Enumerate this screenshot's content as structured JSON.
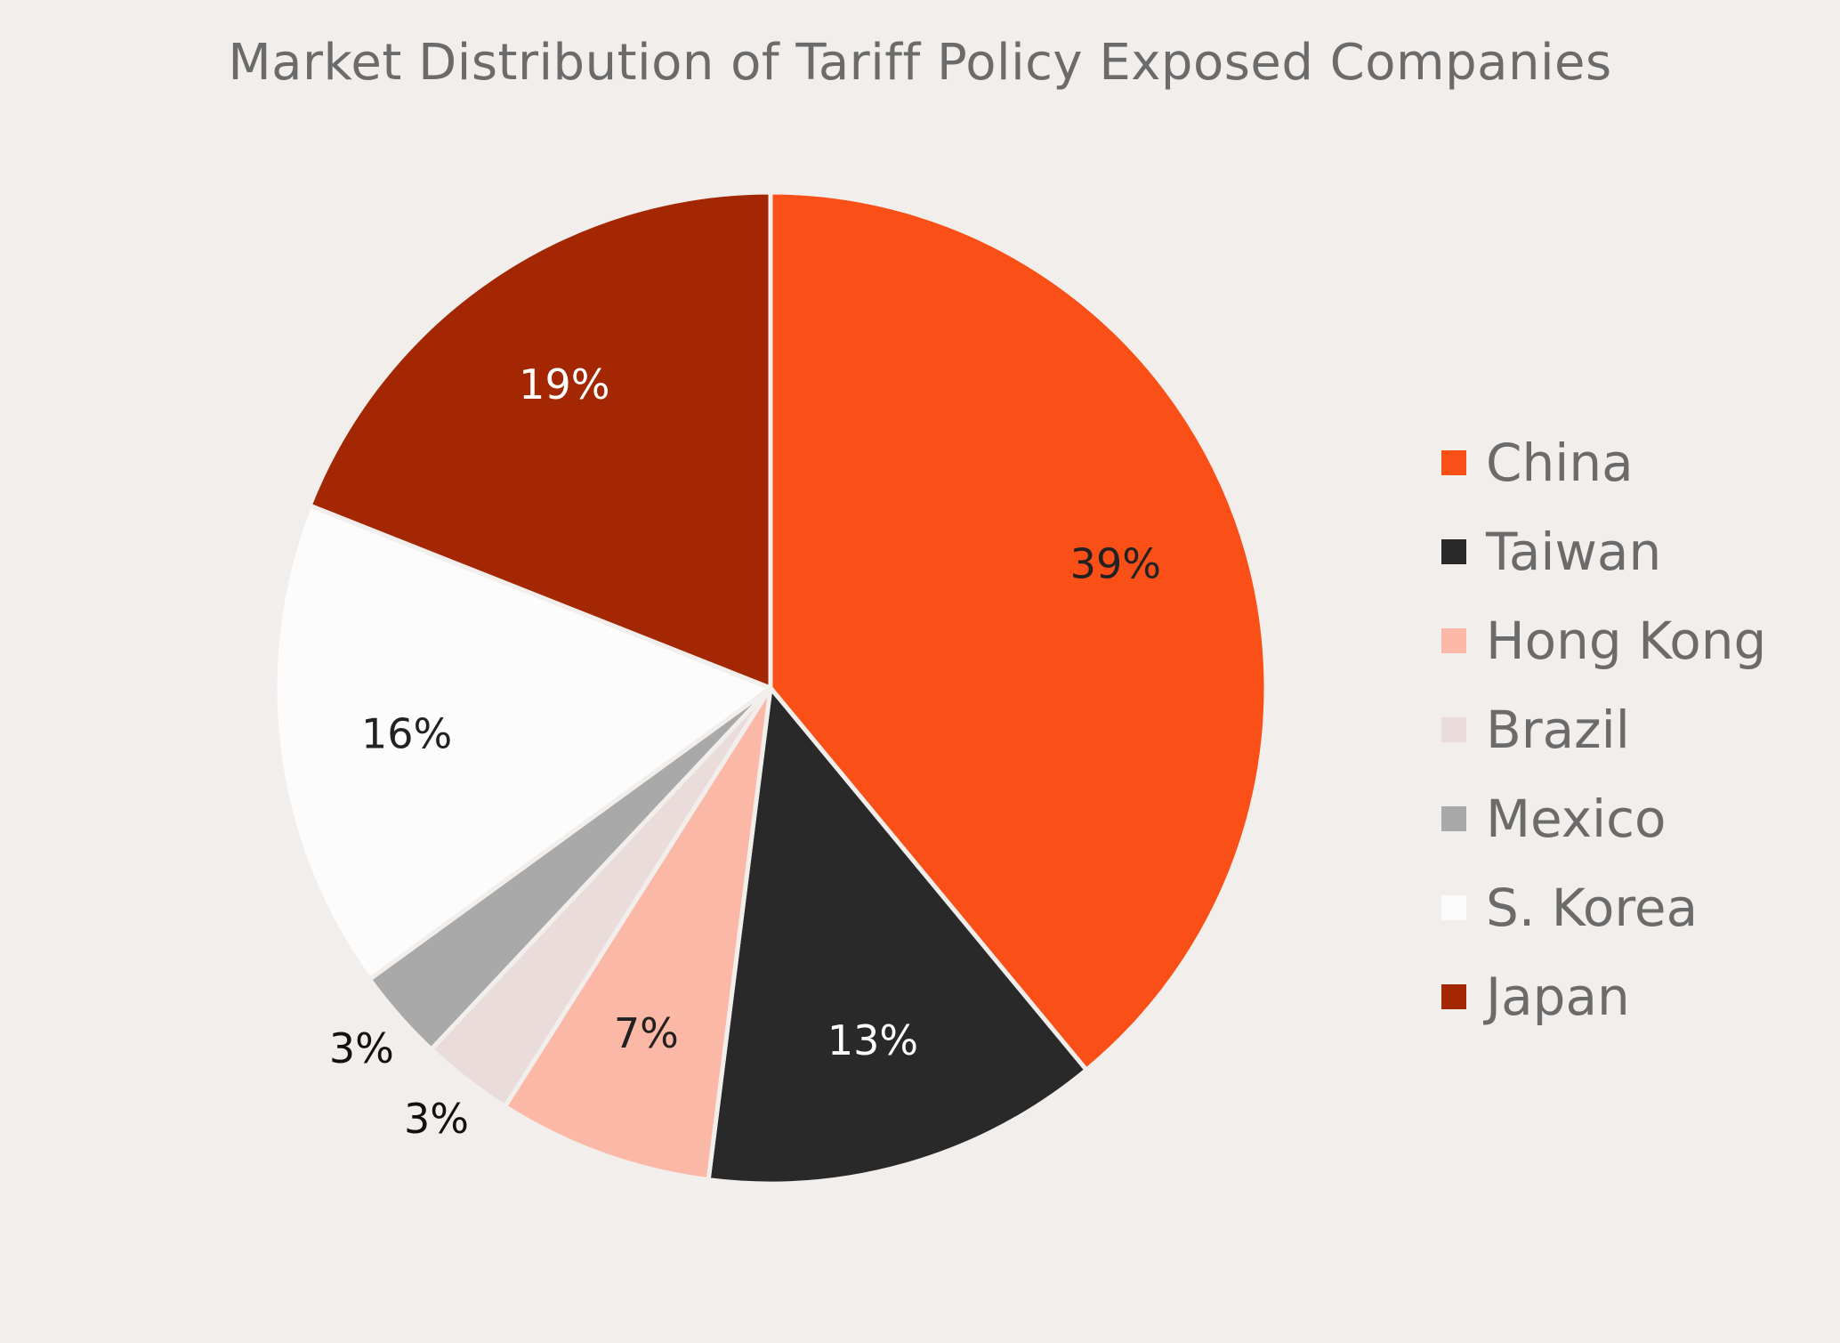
{
  "chart_data": {
    "type": "pie",
    "title": "Market Distribution of Tariff Policy Exposed Companies",
    "legend_position": "right",
    "slices": [
      {
        "label": "China",
        "value": 39,
        "display": "39%",
        "color": "#fa4f17",
        "label_color": "#222222"
      },
      {
        "label": "Taiwan",
        "value": 13,
        "display": "13%",
        "color": "#292929",
        "label_color": "#ffffff"
      },
      {
        "label": "Hong Kong",
        "value": 7,
        "display": "7%",
        "color": "#fbb8a6",
        "label_color": "#222222"
      },
      {
        "label": "Brazil",
        "value": 3,
        "display": "3%",
        "color": "#eadcda",
        "label_color": "#111111"
      },
      {
        "label": "Mexico",
        "value": 3,
        "display": "3%",
        "color": "#a9a9a9",
        "label_color": "#111111"
      },
      {
        "label": "S. Korea",
        "value": 16,
        "display": "16%",
        "color": "#fcfcfc",
        "label_color": "#222222"
      },
      {
        "label": "Japan",
        "value": 19,
        "display": "19%",
        "color": "#a22702",
        "label_color": "#ffffff"
      }
    ]
  }
}
